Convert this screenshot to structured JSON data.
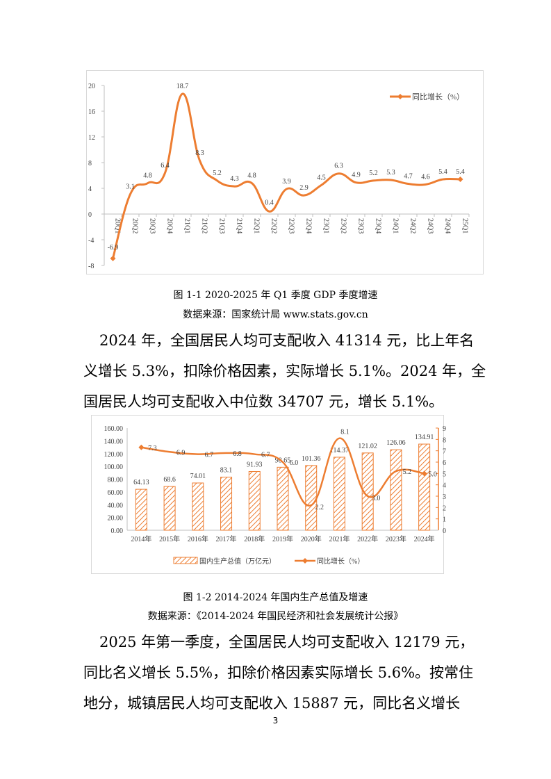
{
  "chart_data": [
    {
      "type": "line",
      "title": "",
      "legend": "同比增长（%）",
      "legend_position": "top-right",
      "categories": [
        "20Q1",
        "20Q2",
        "20Q3",
        "20Q4",
        "21Q1",
        "21Q2",
        "21Q3",
        "21Q4",
        "22Q1",
        "22Q2",
        "22Q3",
        "22Q4",
        "23Q1",
        "23Q2",
        "23Q3",
        "23Q4",
        "24Q1",
        "24Q2",
        "24Q3",
        "24Q4",
        "25Q1"
      ],
      "values": [
        -6.9,
        3.1,
        4.8,
        6.4,
        18.7,
        8.3,
        5.2,
        4.3,
        4.8,
        0.4,
        3.9,
        2.9,
        4.5,
        6.3,
        4.9,
        5.2,
        5.3,
        4.7,
        4.6,
        5.4,
        5.4
      ],
      "value_labels": [
        "-6.9",
        "3.1",
        "4.8",
        "6.4",
        "18.7",
        "8.3",
        "5.2",
        "4.3",
        "4.8",
        "0.4",
        "3.9",
        "2.9",
        "4.5",
        "6.3",
        "4.9",
        "5.2",
        "5.3",
        "4.7",
        "4.6",
        "5.4",
        "5.4"
      ],
      "ylim": [
        -8,
        20
      ],
      "yticks": [
        "20",
        "16",
        "12",
        "8",
        "4",
        "0",
        "-4",
        "-8"
      ],
      "grid": false,
      "color": "#ED7D31"
    },
    {
      "type": "bar",
      "categories": [
        "2014年",
        "2015年",
        "2016年",
        "2017年",
        "2018年",
        "2019年",
        "2020年",
        "2021年",
        "2022年",
        "2023年",
        "2024年"
      ],
      "series": [
        {
          "name": "国内生产总值（万亿元）",
          "axis": "left",
          "type": "bar",
          "values": [
            64.13,
            68.6,
            74.01,
            83.1,
            91.93,
            98.65,
            101.36,
            114.37,
            121.02,
            126.06,
            134.91
          ],
          "labels": [
            "64.13",
            "68.6",
            "74.01",
            "83.1",
            "91.93",
            "98.65",
            "101.36",
            "114.37",
            "121.02",
            "126.06",
            "134.91"
          ]
        },
        {
          "name": "同比增长（%）",
          "axis": "right",
          "type": "line",
          "values": [
            7.3,
            6.9,
            6.7,
            6.8,
            6.7,
            6.0,
            2.2,
            8.1,
            3.0,
            5.2,
            5.0
          ],
          "labels": [
            "7.3",
            "6.9",
            "6.7",
            "6.8",
            "6.7",
            "6.0",
            "2.2",
            "8.1",
            "3.0",
            "5.2",
            "5.0"
          ]
        }
      ],
      "ylim_left": [
        0,
        160
      ],
      "ylim_right": [
        0,
        9
      ],
      "yticks_left": [
        "160.00",
        "140.00",
        "120.00",
        "100.00",
        "80.00",
        "60.00",
        "40.00",
        "20.00",
        "0.00"
      ],
      "yticks_right": [
        "9",
        "8",
        "7",
        "6",
        "5",
        "4",
        "3",
        "2",
        "1",
        "0"
      ],
      "legend_position": "bottom",
      "grid": false,
      "color": "#ED7D31"
    }
  ],
  "captions": {
    "fig1_title": "图 1-1 2020-2025 年 Q1 季度 GDP 季度增速",
    "fig1_source": "数据来源：国家统计局 www.stats.gov.cn",
    "fig2_title": "图 1-2 2014-2024 年国内生产总值及增速",
    "fig2_source": "数据来源：《2014-2024 年国民经济和社会发展统计公报》"
  },
  "paragraphs": {
    "p1_line1": "2024 年，全国居民人均可支配收入 41314 元，比上年名",
    "p1_line2": "义增长 5.3%，扣除价格因素，实际增长 5.1%。2024 年，全",
    "p1_line3": "国居民人均可支配收入中位数 34707 元，增长 5.1%。",
    "p2_line1": "2025 年第一季度，全国居民人均可支配收入 12179 元，",
    "p2_line2": "同比名义增长 5.5%，扣除价格因素实际增长 5.6%。按常住",
    "p2_line3": "地分，城镇居民人均可支配收入 15887 元，同比名义增长"
  },
  "page_number": "3"
}
